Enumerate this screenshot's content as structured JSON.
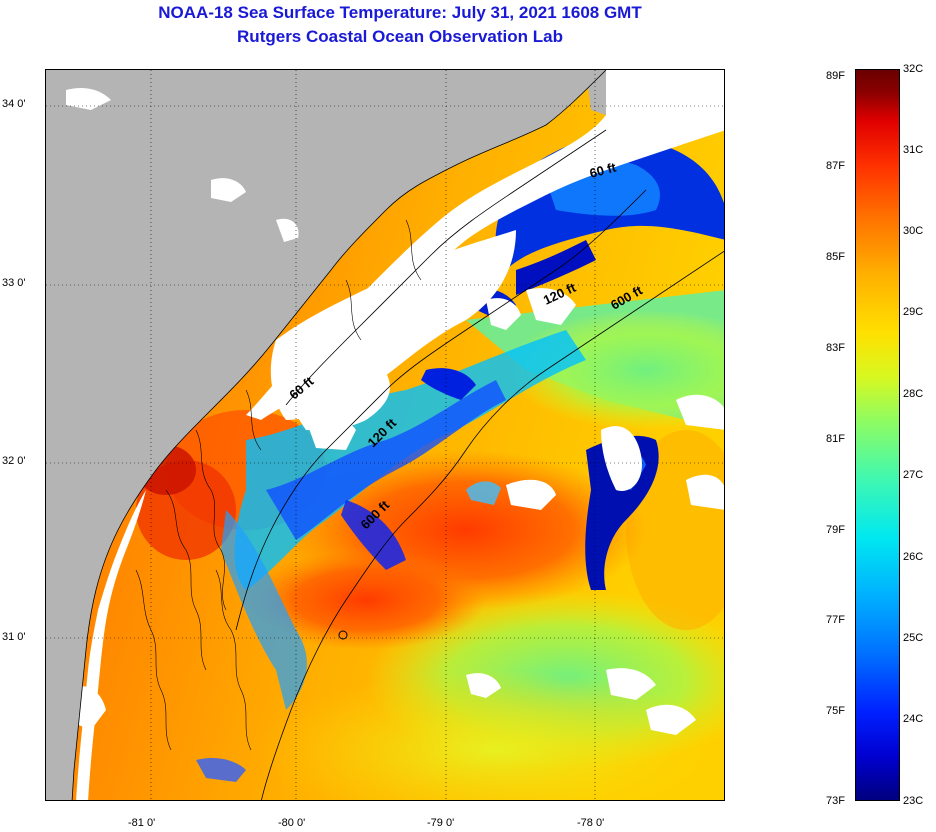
{
  "title_line1": "NOAA-18 Sea Surface Temperature:  July 31, 2021 1608 GMT",
  "title_line2": "Rutgers Coastal Ocean Observation Lab",
  "lat_ticks": [
    "34 0'",
    "33 0'",
    "32 0'",
    "31 0'"
  ],
  "lon_ticks": [
    "-81 0'",
    "-80 0'",
    "-79 0'",
    "-78 0'"
  ],
  "isobaths": [
    {
      "label": "60 ft",
      "depth_ft": 60
    },
    {
      "label": "120 ft",
      "depth_ft": 120
    },
    {
      "label": "600 ft",
      "depth_ft": 600
    },
    {
      "label": "60 ft",
      "depth_ft": 60
    },
    {
      "label": "120 ft",
      "depth_ft": 120
    },
    {
      "label": "600 ft",
      "depth_ft": 600
    }
  ],
  "colorbar": {
    "fahrenheit": [
      "89F",
      "87F",
      "85F",
      "83F",
      "81F",
      "79F",
      "77F",
      "75F",
      "73F"
    ],
    "celsius": [
      "32C",
      "31C",
      "30C",
      "29C",
      "28C",
      "27C",
      "26C",
      "25C",
      "24C",
      "23C"
    ],
    "min_c": 23,
    "max_c": 32
  },
  "colors": {
    "land": "#b4b4b4",
    "cloud": "#ffffff",
    "title": "#1919d6"
  }
}
